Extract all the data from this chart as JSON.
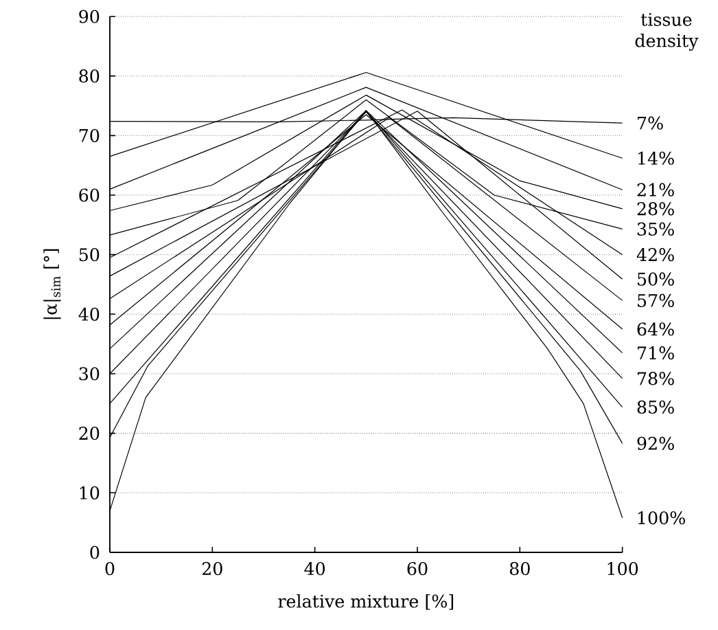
{
  "chart_data": {
    "type": "line",
    "xlabel": "relative mixture [%]",
    "ylabel": "|α|$_{sim}$ [°]",
    "legend_title": "tissue density",
    "xlim": [
      0,
      100
    ],
    "ylim": [
      0,
      90
    ],
    "xticks": [
      0,
      20,
      40,
      60,
      80,
      100
    ],
    "yticks": [
      0,
      10,
      20,
      30,
      40,
      50,
      60,
      70,
      80,
      90
    ],
    "grid": "y",
    "marker": "none",
    "line_style": "solid",
    "series": [
      {
        "name": "7%",
        "color": "#000000",
        "x": [
          0,
          33,
          50,
          57,
          67,
          100
        ],
        "values": [
          72.4,
          72.3,
          72.6,
          72.8,
          73.0,
          72.1
        ]
      },
      {
        "name": "14%",
        "color": "#000000",
        "x": [
          0,
          50,
          100
        ],
        "values": [
          66.5,
          80.6,
          66.2
        ]
      },
      {
        "name": "21%",
        "color": "#000000",
        "x": [
          0,
          50,
          100
        ],
        "values": [
          61.0,
          78.1,
          60.9
        ]
      },
      {
        "name": "28%",
        "color": "#000000",
        "x": [
          0,
          20,
          50,
          80,
          100
        ],
        "values": [
          57.4,
          61.7,
          76.8,
          62.4,
          57.7
        ]
      },
      {
        "name": "35%",
        "color": "#000000",
        "x": [
          0,
          25,
          50,
          75,
          100
        ],
        "values": [
          53.3,
          59.1,
          76.0,
          60.0,
          54.3
        ]
      },
      {
        "name": "42%",
        "color": "#000000",
        "x": [
          0,
          57,
          100
        ],
        "values": [
          49.5,
          74.3,
          50.0
        ]
      },
      {
        "name": "50%",
        "color": "#000000",
        "x": [
          0,
          60,
          100
        ],
        "values": [
          46.4,
          74.1,
          45.9
        ]
      },
      {
        "name": "57%",
        "color": "#000000",
        "x": [
          0,
          54.5,
          100
        ],
        "values": [
          42.6,
          73.0,
          42.3
        ]
      },
      {
        "name": "64%",
        "color": "#000000",
        "x": [
          0,
          50,
          100
        ],
        "values": [
          38.2,
          73.5,
          37.5
        ]
      },
      {
        "name": "71%",
        "color": "#000000",
        "x": [
          0,
          50,
          100
        ],
        "values": [
          34.2,
          74.2,
          33.5
        ]
      },
      {
        "name": "78%",
        "color": "#000000",
        "x": [
          0,
          50,
          100
        ],
        "values": [
          30.0,
          74.0,
          29.2
        ]
      },
      {
        "name": "85%",
        "color": "#000000",
        "x": [
          0,
          50,
          100
        ],
        "values": [
          25.0,
          74.2,
          24.4
        ]
      },
      {
        "name": "92%",
        "color": "#000000",
        "x": [
          0,
          7.4,
          50,
          91.8,
          100
        ],
        "values": [
          19.3,
          31.3,
          74.0,
          30.5,
          18.3
        ]
      },
      {
        "name": "100%",
        "color": "#000000",
        "x": [
          0,
          7,
          35,
          50,
          65,
          85.4,
          92.4,
          100
        ],
        "values": [
          7.0,
          26.0,
          58.5,
          74.2,
          57.0,
          34.2,
          25.0,
          5.8
        ]
      }
    ]
  }
}
